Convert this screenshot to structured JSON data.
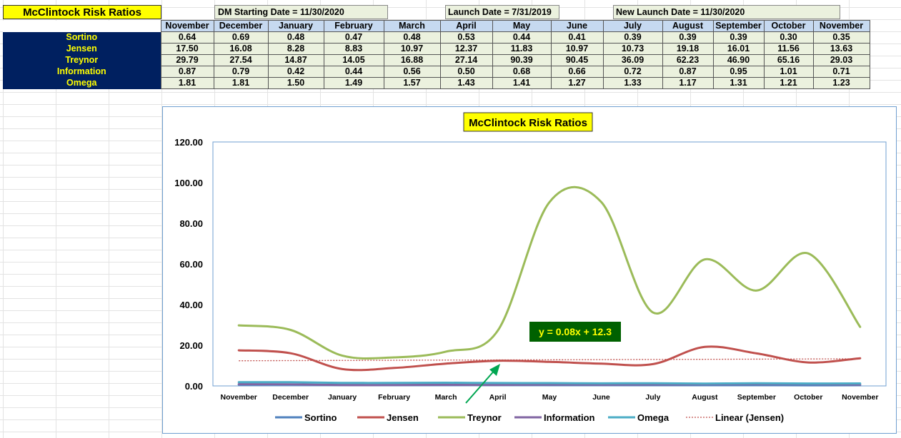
{
  "sheet": {
    "title": "McClintock Risk Ratios",
    "dm_start": "DM Starting Date = 11/30/2020",
    "launch": "Launch Date = 7/31/2019",
    "new_launch": "New Launch Date = 11/30/2020",
    "months": [
      "November",
      "December",
      "January",
      "February",
      "March",
      "April",
      "May",
      "June",
      "July",
      "August",
      "September",
      "October",
      "November"
    ],
    "rows": [
      {
        "label": "Sortino",
        "values": [
          "0.64",
          "0.69",
          "0.48",
          "0.47",
          "0.48",
          "0.53",
          "0.44",
          "0.41",
          "0.39",
          "0.39",
          "0.39",
          "0.30",
          "0.35"
        ]
      },
      {
        "label": "Jensen",
        "values": [
          "17.50",
          "16.08",
          "8.28",
          "8.83",
          "10.97",
          "12.37",
          "11.83",
          "10.97",
          "10.73",
          "19.18",
          "16.01",
          "11.56",
          "13.63"
        ]
      },
      {
        "label": "Treynor",
        "values": [
          "29.79",
          "27.54",
          "14.87",
          "14.05",
          "16.88",
          "27.14",
          "90.39",
          "90.45",
          "36.09",
          "62.23",
          "46.90",
          "65.16",
          "29.03"
        ]
      },
      {
        "label": "Information",
        "values": [
          "0.87",
          "0.79",
          "0.42",
          "0.44",
          "0.56",
          "0.50",
          "0.68",
          "0.66",
          "0.72",
          "0.87",
          "0.95",
          "1.01",
          "0.71"
        ]
      },
      {
        "label": "Omega",
        "values": [
          "1.81",
          "1.81",
          "1.50",
          "1.49",
          "1.57",
          "1.43",
          "1.41",
          "1.27",
          "1.33",
          "1.17",
          "1.31",
          "1.21",
          "1.23"
        ]
      }
    ]
  },
  "chart_data": {
    "type": "line",
    "title": "McClintock Risk Ratios",
    "categories": [
      "November",
      "December",
      "January",
      "February",
      "March",
      "April",
      "May",
      "June",
      "July",
      "August",
      "September",
      "October",
      "November"
    ],
    "ylim": [
      0,
      120
    ],
    "yticks": [
      "0.00",
      "20.00",
      "40.00",
      "60.00",
      "80.00",
      "100.00",
      "120.00"
    ],
    "ytick_values": [
      0,
      20,
      40,
      60,
      80,
      100,
      120
    ],
    "grid": false,
    "legend_position": "bottom",
    "series": [
      {
        "name": "Sortino",
        "color": "#4f81bd",
        "values": [
          0.64,
          0.69,
          0.48,
          0.47,
          0.48,
          0.53,
          0.44,
          0.41,
          0.39,
          0.39,
          0.39,
          0.3,
          0.35
        ]
      },
      {
        "name": "Jensen",
        "color": "#c0504d",
        "values": [
          17.5,
          16.08,
          8.28,
          8.83,
          10.97,
          12.37,
          11.83,
          10.97,
          10.73,
          19.18,
          16.01,
          11.56,
          13.63
        ]
      },
      {
        "name": "Treynor",
        "color": "#9bbb59",
        "values": [
          29.79,
          27.54,
          14.87,
          14.05,
          16.88,
          27.14,
          90.39,
          90.45,
          36.09,
          62.23,
          46.9,
          65.16,
          29.03
        ]
      },
      {
        "name": "Information",
        "color": "#8064a2",
        "values": [
          0.87,
          0.79,
          0.42,
          0.44,
          0.56,
          0.5,
          0.68,
          0.66,
          0.72,
          0.87,
          0.95,
          1.01,
          0.71
        ]
      },
      {
        "name": "Omega",
        "color": "#4bacc6",
        "values": [
          1.81,
          1.81,
          1.5,
          1.49,
          1.57,
          1.43,
          1.41,
          1.27,
          1.33,
          1.17,
          1.31,
          1.21,
          1.23
        ]
      }
    ],
    "trendline": {
      "name": "Linear (Jensen)",
      "color": "#c0504d",
      "slope": 0.08,
      "intercept": 12.3
    },
    "annotation": {
      "text": "y = 0.08x + 12.3",
      "background": "#006100",
      "color": "#ffff00",
      "arrow_color": "#00a651"
    }
  }
}
